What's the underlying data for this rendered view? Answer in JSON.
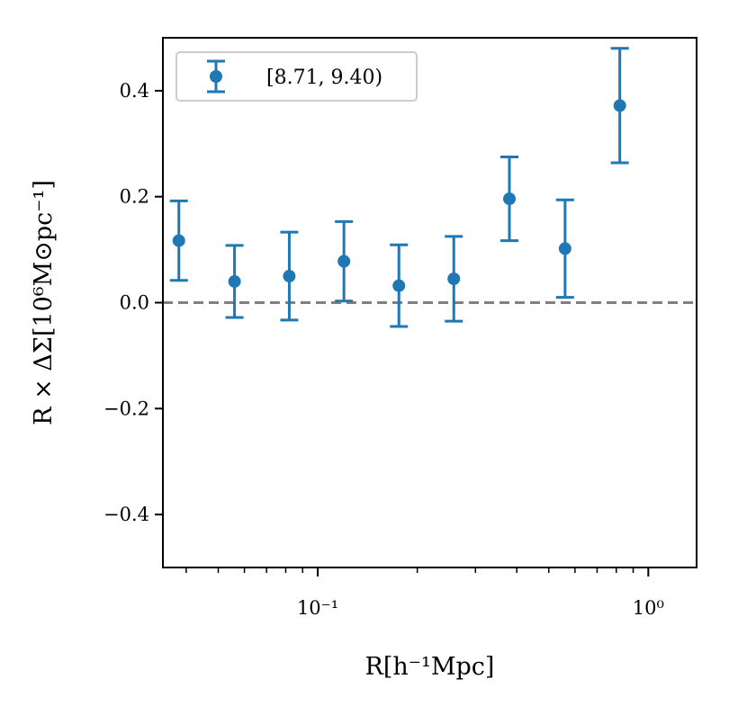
{
  "chart_data": {
    "type": "scatter",
    "xscale": "log",
    "xlim": [
      0.034,
      1.4
    ],
    "ylim": [
      -0.5,
      0.5
    ],
    "xlabel": "R[h⁻¹Mpc]",
    "ylabel": "R × ΔΣ[10⁶M⊙pc⁻¹]",
    "x_tick_labels": [
      {
        "value": 0.1,
        "label": "10⁻¹"
      },
      {
        "value": 1.0,
        "label": "10⁰"
      }
    ],
    "x_minor_ticks": [
      0.04,
      0.05,
      0.06,
      0.07,
      0.08,
      0.09,
      0.2,
      0.3,
      0.4,
      0.5,
      0.6,
      0.7,
      0.8,
      0.9
    ],
    "y_ticks": [
      {
        "value": 0.4,
        "label": "0.4"
      },
      {
        "value": 0.2,
        "label": "0.2"
      },
      {
        "value": 0.0,
        "label": "0.0"
      },
      {
        "value": -0.2,
        "label": "−0.2"
      },
      {
        "value": -0.4,
        "label": "−0.4"
      }
    ],
    "reference_line": {
      "y": 0.0,
      "style": "dashed",
      "color": "#808080"
    },
    "legend": {
      "position": "top-left",
      "entries": [
        "[8.71, 9.40)"
      ]
    },
    "series": [
      {
        "name": "[8.71, 9.40)",
        "color": "#1f77b4",
        "x": [
          0.038,
          0.056,
          0.082,
          0.12,
          0.176,
          0.258,
          0.38,
          0.56,
          0.82
        ],
        "y": [
          0.117,
          0.04,
          0.05,
          0.078,
          0.032,
          0.045,
          0.196,
          0.102,
          0.372
        ],
        "yerr": [
          0.075,
          0.068,
          0.083,
          0.075,
          0.077,
          0.08,
          0.079,
          0.092,
          0.108
        ]
      }
    ]
  }
}
